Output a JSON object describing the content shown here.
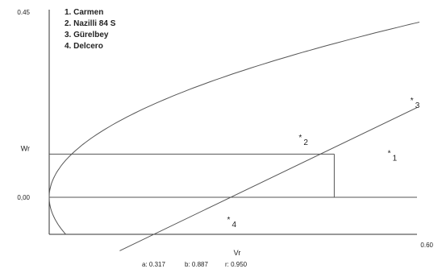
{
  "chart_data": {
    "type": "scatter",
    "title": "",
    "xlabel": "",
    "ylabel": "",
    "x_ticks": [
      {
        "value": 0,
        "label": ""
      },
      {
        "value": 0.6,
        "label": "0.60"
      }
    ],
    "y_ticks": [
      {
        "value": 0,
        "label": "0,00"
      },
      {
        "value": 0.45,
        "label": "0.45"
      }
    ],
    "xlim": [
      0,
      0.6
    ],
    "ylim": [
      -0.09,
      0.45
    ],
    "legend": {
      "position": "top-left",
      "entries": [
        "1. Carmen",
        "2. Nazilli 84 S",
        "3. Gürelbey",
        "4. Delcero"
      ]
    },
    "points": [
      {
        "label": "1",
        "x": 0.56,
        "y": 0.097
      },
      {
        "label": "2",
        "x": 0.415,
        "y": 0.135
      },
      {
        "label": "3",
        "x": 0.597,
        "y": 0.225
      },
      {
        "label": "4",
        "x": 0.298,
        "y": -0.065
      }
    ],
    "regression_line": {
      "a": 0.317,
      "b": 0.887,
      "r": 0.95
    },
    "parabola": {
      "coefficient": 0.18,
      "vertex": [
        0,
        0
      ]
    },
    "reference": {
      "Vr": 0.105,
      "Vr_axis_label": "Vr",
      "Wr_axis_label": "Wr",
      "x_at_Vr": 0.465
    },
    "annotations": {
      "a": "a: 0.317",
      "b": "b: 0.887",
      "r": "r: 0.950"
    }
  }
}
